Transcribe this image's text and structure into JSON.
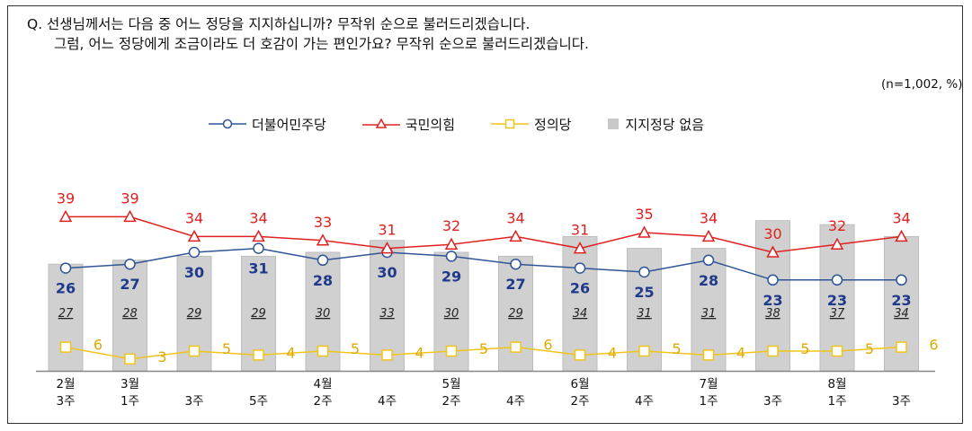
{
  "question": {
    "line1": "Q. 선생님께서는 다음 중 어느 정당을 지지하십니까? 무작위 순으로 불러드리겠습니다.",
    "line2": "그럼, 어느 정당에게 조금이라도 더 호감이 가는 편인가요? 무작위 순으로 불러드리겠습니다."
  },
  "sample_note": "(n=1,002,  %)",
  "legend": {
    "democratic": "더불어민주당",
    "ppp": "국민의힘",
    "justice": "정의당",
    "none": "지지정당 없음"
  },
  "colors": {
    "democratic": "#2f5597",
    "democratic_label": "#1f3a8a",
    "ppp": "#e02020",
    "justice": "#f0c419",
    "justice_label": "#e0a800",
    "none_bar": "#d0d0d0",
    "none_bar_border": "#bdbdbd",
    "axis": "#888888"
  },
  "chart_data": {
    "type": "line",
    "x_month_labels": [
      "2월",
      "3월",
      "",
      "",
      "4월",
      "",
      "5월",
      "",
      "6월",
      "",
      "7월",
      "",
      "8월",
      ""
    ],
    "x_week_labels": [
      "3주",
      "1주",
      "3주",
      "5주",
      "2주",
      "4주",
      "2주",
      "4주",
      "2주",
      "4주",
      "1주",
      "3주",
      "1주",
      "3주"
    ],
    "series": [
      {
        "key": "democratic",
        "name": "더불어민주당",
        "marker": "circle",
        "values": [
          26,
          27,
          30,
          31,
          28,
          30,
          29,
          27,
          26,
          25,
          28,
          23,
          23,
          23
        ]
      },
      {
        "key": "ppp",
        "name": "국민의힘",
        "marker": "triangle",
        "values": [
          39,
          39,
          34,
          34,
          33,
          31,
          32,
          34,
          31,
          35,
          34,
          30,
          32,
          34
        ]
      },
      {
        "key": "justice",
        "name": "정의당",
        "marker": "square",
        "values": [
          6,
          3,
          5,
          4,
          5,
          4,
          5,
          6,
          4,
          5,
          4,
          5,
          5,
          6
        ]
      }
    ],
    "bars": {
      "key": "none",
      "name": "지지정당 없음",
      "values": [
        27,
        28,
        29,
        29,
        30,
        33,
        30,
        29,
        34,
        31,
        31,
        38,
        37,
        34
      ]
    },
    "ylim": [
      0,
      45
    ]
  }
}
